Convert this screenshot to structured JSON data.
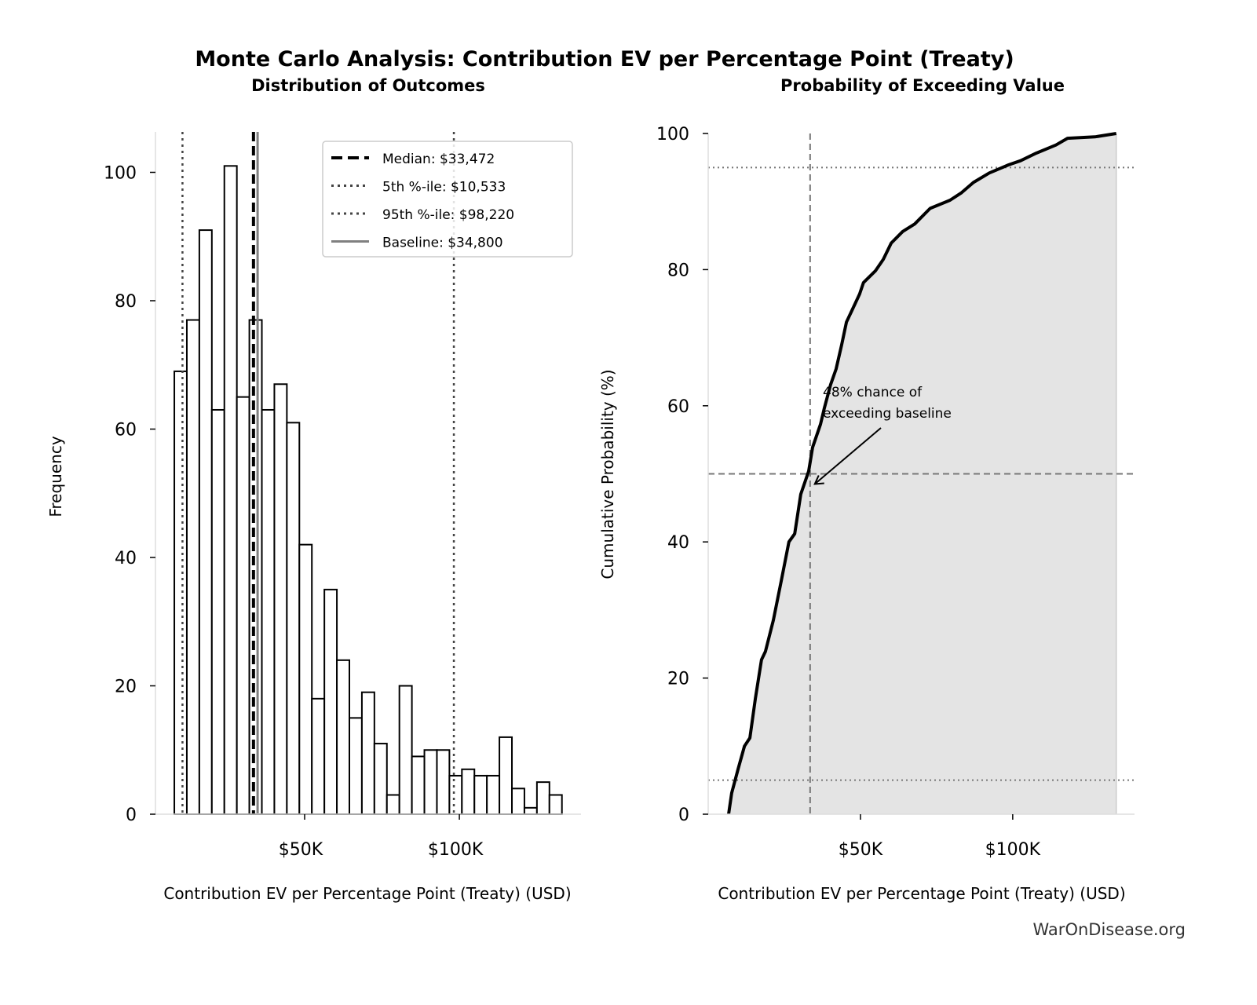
{
  "figure": {
    "title": "Monte Carlo Analysis: Contribution EV per Percentage Point (Treaty)",
    "watermark": "WarOnDisease.org"
  },
  "chart_data": [
    {
      "type": "bar",
      "subtitle": "Distribution of Outcomes",
      "xlabel": "Contribution EV per Percentage Point (Treaty) (USD)",
      "ylabel": "Frequency",
      "xlim": [
        1.8,
        139.3
      ],
      "ylim": [
        0,
        106.3
      ],
      "x_ticks": [
        {
          "value": 50,
          "label": "$50K"
        },
        {
          "value": 100,
          "label": "$100K"
        }
      ],
      "y_ticks": [
        {
          "value": 0,
          "label": "0"
        },
        {
          "value": 20,
          "label": "20"
        },
        {
          "value": 40,
          "label": "40"
        },
        {
          "value": 60,
          "label": "60"
        },
        {
          "value": 80,
          "label": "80"
        },
        {
          "value": 100,
          "label": "100"
        }
      ],
      "x_units": "thousand USD",
      "bin_start": 7.9,
      "bin_width": 4.04,
      "values": [
        69,
        77,
        91,
        63,
        101,
        65,
        77,
        63,
        67,
        61,
        42,
        18,
        35,
        24,
        15,
        19,
        11,
        3,
        20,
        9,
        10,
        10,
        6,
        7,
        6,
        6,
        12,
        4,
        1,
        5,
        3
      ],
      "bar_fill": "#ffffff",
      "bar_edge": "#000000",
      "reference_lines": [
        {
          "label": "Median: $33,472",
          "value": 33.472,
          "style": "dashed",
          "color": "#000000"
        },
        {
          "label": "5th %-ile: $10,533",
          "value": 10.533,
          "style": "dotted",
          "color": "#444444"
        },
        {
          "label": "95th %-ile: $98,220",
          "value": 98.22,
          "style": "dotted",
          "color": "#444444"
        },
        {
          "label": "Baseline: $34,800",
          "value": 34.8,
          "style": "solid",
          "color": "#808080"
        }
      ],
      "legend_position": "upper-right",
      "grid": false
    },
    {
      "type": "line",
      "subtitle": "Probability of Exceeding Value",
      "xlabel": "Contribution EV per Percentage Point (Treaty) (USD)",
      "ylabel": "Cumulative Probability (%)",
      "xlim": [
        0,
        140
      ],
      "ylim": [
        0,
        100
      ],
      "x_ticks": [
        {
          "value": 50,
          "label": "$50K"
        },
        {
          "value": 100,
          "label": "$100K"
        }
      ],
      "y_ticks": [
        {
          "value": 0,
          "label": "0"
        },
        {
          "value": 20,
          "label": "20"
        },
        {
          "value": 40,
          "label": "40"
        },
        {
          "value": 60,
          "label": "60"
        },
        {
          "value": 80,
          "label": "80"
        },
        {
          "value": 100,
          "label": "100"
        }
      ],
      "x_units": "thousand USD",
      "x": [
        6.7,
        7.7,
        9.8,
        11.9,
        13.7,
        15.5,
        17.5,
        18.8,
        21.4,
        24.0,
        26.5,
        28.4,
        30.4,
        33.0,
        34.3,
        36.9,
        38.1,
        40.2,
        42.0,
        43.8,
        45.4,
        47.2,
        49.7,
        51.0,
        54.9,
        57.5,
        60.1,
        63.9,
        67.8,
        72.9,
        79.4,
        83.2,
        87.1,
        92.3,
        98.7,
        102.6,
        107.7,
        114.2,
        118.0,
        127.0,
        134.0
      ],
      "y": [
        0,
        3.1,
        6.6,
        10,
        11.2,
        17,
        22.7,
        23.9,
        28.5,
        34.3,
        40,
        41.2,
        47,
        50.4,
        53.9,
        57.3,
        59.6,
        63.1,
        65.4,
        68.9,
        72.3,
        74,
        76.4,
        78.1,
        79.8,
        81.5,
        83.9,
        85.6,
        86.7,
        89,
        90.2,
        91.3,
        92.8,
        94.2,
        95.4,
        96,
        97.1,
        98.3,
        99.3,
        99.5,
        100
      ],
      "line_color": "#000000",
      "fill_color": "#e4e4e4",
      "reference_lines": [
        {
          "axis": "x",
          "value": 33.472,
          "style": "dashed",
          "color": "#777777"
        },
        {
          "axis": "y",
          "value": 50,
          "style": "dashed",
          "color": "#777777"
        },
        {
          "axis": "y",
          "value": 5,
          "style": "dotted",
          "color": "#777777"
        },
        {
          "axis": "y",
          "value": 95,
          "style": "dotted",
          "color": "#777777"
        }
      ],
      "annotation": {
        "lines": [
          "48% chance of",
          "exceeding baseline"
        ],
        "text_at": [
          37,
          59
        ],
        "arrow_to": [
          35,
          48.5
        ]
      },
      "grid": false
    }
  ]
}
